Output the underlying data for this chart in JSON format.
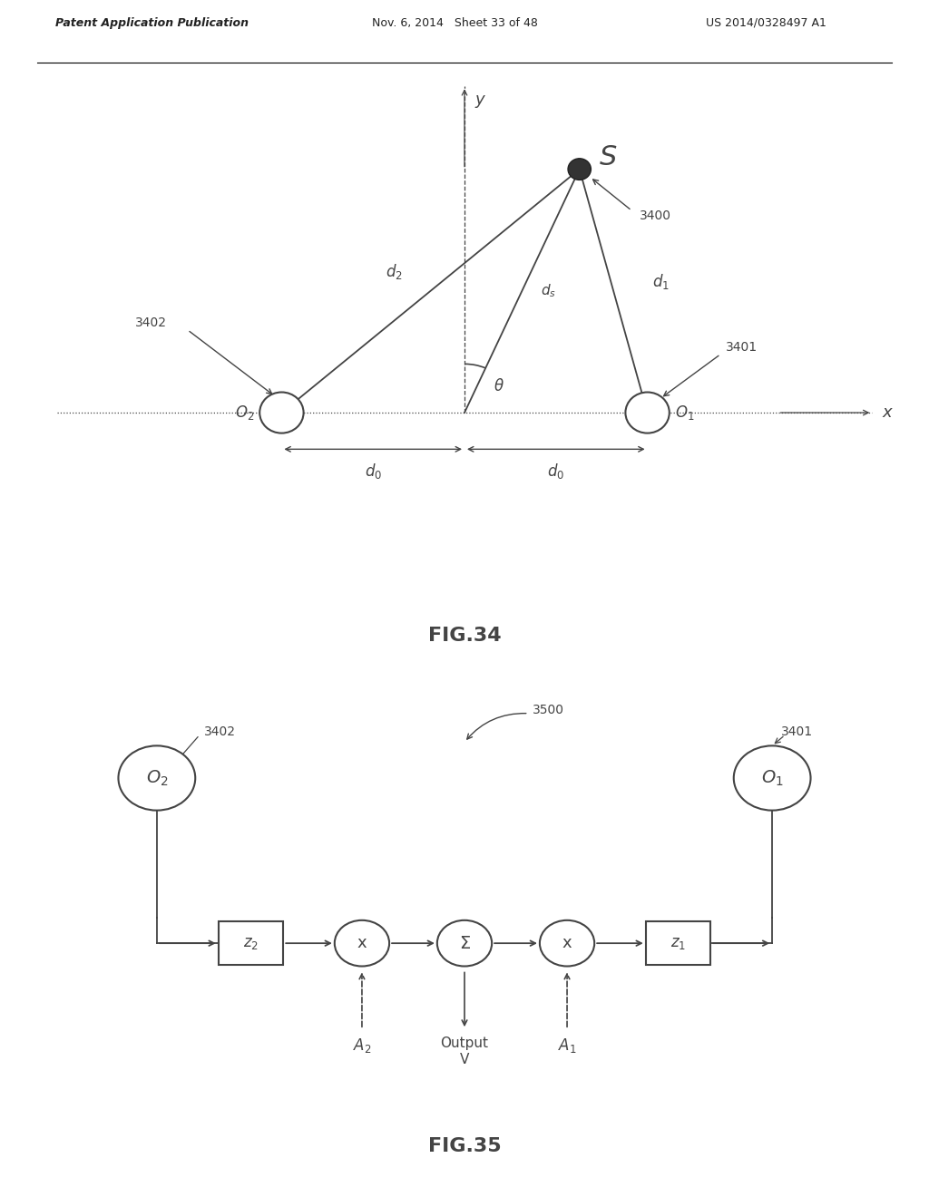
{
  "header_left": "Patent Application Publication",
  "header_mid": "Nov. 6, 2014   Sheet 33 of 48",
  "header_right": "US 2014/0328497 A1",
  "fig34_caption": "FIG.34",
  "fig35_caption": "FIG.35",
  "bg_color": "#ffffff",
  "line_color": "#444444"
}
